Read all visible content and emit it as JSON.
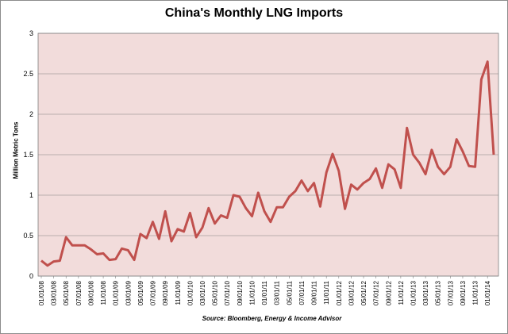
{
  "chart_data": {
    "type": "line",
    "title": "China's Monthly LNG Imports",
    "ylabel": "Million Metric Tons",
    "source": "Source: Bloomberg,  Energy & Income Advisor",
    "ylim": [
      0,
      3
    ],
    "yticks": [
      "0",
      "0.5",
      "1",
      "1.5",
      "2",
      "2.5",
      "3"
    ],
    "xtick_labels": [
      "01/01/08",
      "03/01/08",
      "05/01/08",
      "07/01/08",
      "09/01/08",
      "11/01/08",
      "01/01/09",
      "03/01/09",
      "05/01/09",
      "07/01/09",
      "09/01/09",
      "11/01/09",
      "01/01/10",
      "03/01/10",
      "05/01/10",
      "07/01/10",
      "09/01/10",
      "11/01/10",
      "01/01/11",
      "03/01/11",
      "05/01/11",
      "07/01/11",
      "09/01/11",
      "11/01/11",
      "01/01/12",
      "03/01/12",
      "05/01/12",
      "07/01/12",
      "09/01/12",
      "11/01/12",
      "01/01/13",
      "03/01/13",
      "05/01/13",
      "07/01/13",
      "09/01/13",
      "11/01/13",
      "01/01/14"
    ],
    "x_start": "01/01/08",
    "x_end": "02/01/14",
    "grid": "horizontal",
    "legend": "none",
    "series": [
      {
        "color": "#c0504d",
        "values": [
          0.19,
          0.13,
          0.18,
          0.19,
          0.48,
          0.38,
          0.38,
          0.38,
          0.33,
          0.27,
          0.28,
          0.2,
          0.21,
          0.34,
          0.32,
          0.2,
          0.52,
          0.47,
          0.67,
          0.46,
          0.8,
          0.43,
          0.58,
          0.55,
          0.78,
          0.48,
          0.6,
          0.84,
          0.65,
          0.75,
          0.72,
          1.0,
          0.98,
          0.84,
          0.74,
          1.03,
          0.8,
          0.67,
          0.85,
          0.85,
          0.98,
          1.05,
          1.18,
          1.05,
          1.15,
          0.86,
          1.28,
          1.51,
          1.3,
          0.83,
          1.13,
          1.07,
          1.15,
          1.2,
          1.33,
          1.09,
          1.38,
          1.32,
          1.09,
          1.83,
          1.5,
          1.4,
          1.26,
          1.56,
          1.35,
          1.26,
          1.35,
          1.69,
          1.54,
          1.36,
          1.35,
          2.43,
          2.65,
          1.5
        ]
      }
    ],
    "plot_bg": "#f2dcdb",
    "gridline_color": "#808080"
  }
}
